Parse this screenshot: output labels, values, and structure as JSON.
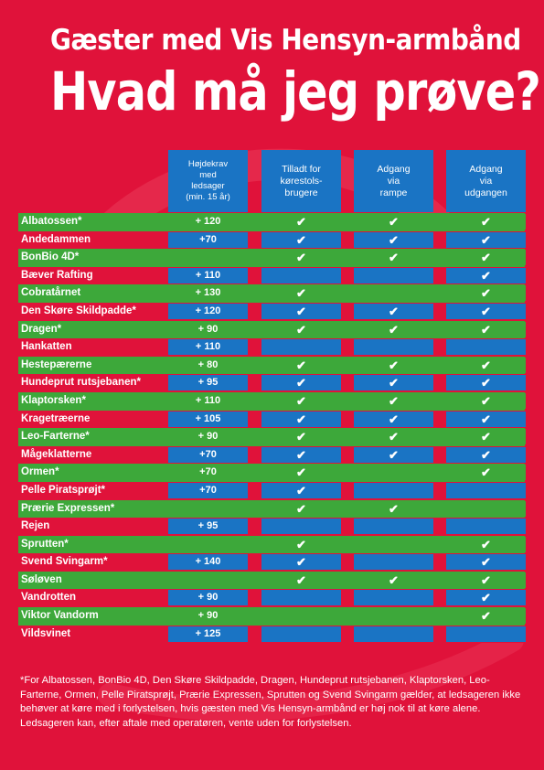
{
  "colors": {
    "background": "#e0123a",
    "green": "#3da83a",
    "blue": "#1a74c4"
  },
  "header": {
    "title_line1": "Gæster med Vis Hensyn-armbånd",
    "title_line2": "Hvad må jeg prøve?"
  },
  "columns": [
    "Højdekrav\nmed\nledsager\n(min. 15 år)",
    "Tilladt for\nkørestols-\nbrugere",
    "Adgang\nvia\nrampe",
    "Adgang\nvia\nudgangen"
  ],
  "check_icon": "check-icon",
  "check_glyph": "✔",
  "rows": [
    {
      "name": "Albatossen*",
      "height": "+ 120",
      "wheelchair": true,
      "ramp": true,
      "exit": true
    },
    {
      "name": "Andedammen",
      "height": "+70",
      "wheelchair": true,
      "ramp": true,
      "exit": true
    },
    {
      "name": "BonBio 4D*",
      "height": "",
      "wheelchair": true,
      "ramp": true,
      "exit": true
    },
    {
      "name": "Bæver Rafting",
      "height": "+ 110",
      "wheelchair": false,
      "ramp": false,
      "exit": true
    },
    {
      "name": "Cobratårnet",
      "height": "+ 130",
      "wheelchair": true,
      "ramp": false,
      "exit": true
    },
    {
      "name": "Den Skøre Skildpadde*",
      "height": "+ 120",
      "wheelchair": true,
      "ramp": true,
      "exit": true
    },
    {
      "name": "Dragen*",
      "height": "+ 90",
      "wheelchair": true,
      "ramp": true,
      "exit": true
    },
    {
      "name": "Hankatten",
      "height": "+ 110",
      "wheelchair": false,
      "ramp": false,
      "exit": false
    },
    {
      "name": "Hestepærerne",
      "height": "+ 80",
      "wheelchair": true,
      "ramp": true,
      "exit": true
    },
    {
      "name": "Hundeprut rutsjebanen*",
      "height": "+ 95",
      "wheelchair": true,
      "ramp": true,
      "exit": true
    },
    {
      "name": "Klaptorsken*",
      "height": "+ 110",
      "wheelchair": true,
      "ramp": true,
      "exit": true
    },
    {
      "name": "Kragetræerne",
      "height": "+ 105",
      "wheelchair": true,
      "ramp": true,
      "exit": true
    },
    {
      "name": "Leo-Farterne*",
      "height": "+ 90",
      "wheelchair": true,
      "ramp": true,
      "exit": true
    },
    {
      "name": "Mågeklatterne",
      "height": "+70",
      "wheelchair": true,
      "ramp": true,
      "exit": true
    },
    {
      "name": "Ormen*",
      "height": "+70",
      "wheelchair": true,
      "ramp": false,
      "exit": true
    },
    {
      "name": "Pelle Piratsprøjt*",
      "height": "+70",
      "wheelchair": true,
      "ramp": false,
      "exit": false
    },
    {
      "name": "Prærie Expressen*",
      "height": "",
      "wheelchair": true,
      "ramp": true,
      "exit": false
    },
    {
      "name": "Rejen",
      "height": "+ 95",
      "wheelchair": false,
      "ramp": false,
      "exit": false
    },
    {
      "name": "Sprutten*",
      "height": "",
      "wheelchair": true,
      "ramp": false,
      "exit": true
    },
    {
      "name": "Svend Svingarm*",
      "height": "+ 140",
      "wheelchair": true,
      "ramp": false,
      "exit": true
    },
    {
      "name": "Søløven",
      "height": "",
      "wheelchair": true,
      "ramp": true,
      "exit": true
    },
    {
      "name": "Vandrotten",
      "height": "+ 90",
      "wheelchair": false,
      "ramp": false,
      "exit": true
    },
    {
      "name": "Viktor Vandorm",
      "height": "+ 90",
      "wheelchair": false,
      "ramp": false,
      "exit": true
    },
    {
      "name": "Vildsvinet",
      "height": "+ 125",
      "wheelchair": false,
      "ramp": false,
      "exit": false
    }
  ],
  "footnote": "*For Albatossen, BonBio 4D, Den Skøre Skildpadde, Dragen, Hundeprut rutsjebanen, Klaptorsken, Leo-Farterne, Ormen, Pelle Piratsprøjt, Prærie Expressen, Sprutten og Svend Svingarm gælder, at ledsageren ikke behøver at køre med i forlystelsen, hvis gæsten med Vis Hensyn-armbånd er høj nok til at køre alene. Ledsageren kan, efter aftale med operatøren, vente uden for forlystelsen."
}
